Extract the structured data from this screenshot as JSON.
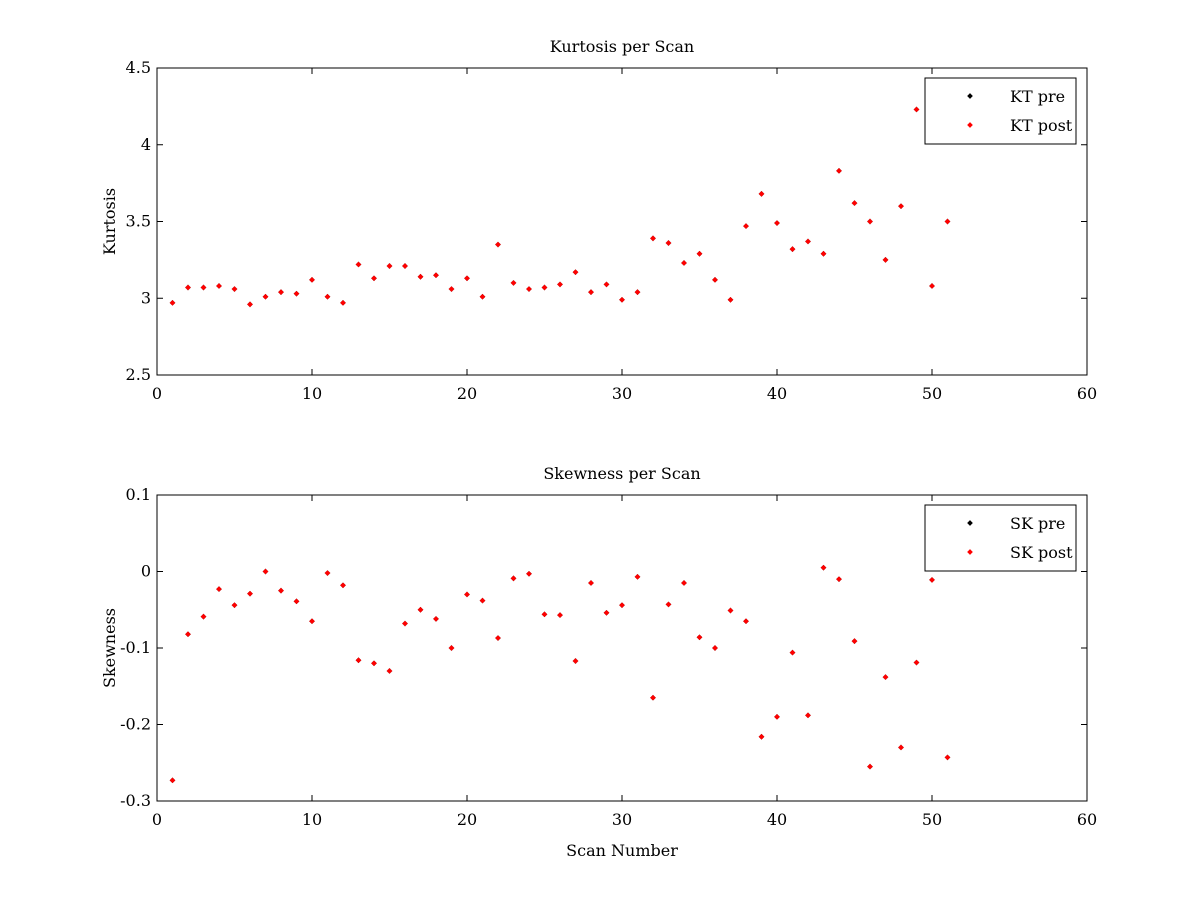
{
  "chart_data": [
    {
      "type": "scatter",
      "title": "Kurtosis per Scan",
      "xlabel": "",
      "ylabel": "Kurtosis",
      "xlim": [
        0,
        60
      ],
      "ylim": [
        2.5,
        4.5
      ],
      "xticks": [
        "0",
        "10",
        "20",
        "30",
        "40",
        "50",
        "60"
      ],
      "yticks": [
        "2.5",
        "3",
        "3.5",
        "4",
        "4.5"
      ],
      "xtick_values": [
        0,
        10,
        20,
        30,
        40,
        50,
        60
      ],
      "ytick_values": [
        2.5,
        3,
        3.5,
        4,
        4.5
      ],
      "grid": false,
      "legend_position": "top-right",
      "legend": [
        {
          "name": "KT pre",
          "color": "#000000"
        },
        {
          "name": "KT post",
          "color": "#ff0000"
        }
      ],
      "series": [
        {
          "name": "KT pre",
          "color": "#000000",
          "x": [
            1,
            2,
            3,
            4,
            5,
            6,
            7,
            8,
            9,
            10,
            11,
            12,
            13,
            14,
            15,
            16,
            17,
            18,
            19,
            20,
            21,
            22,
            23,
            24,
            25,
            26,
            27,
            28,
            29,
            30,
            31,
            32,
            33,
            34,
            35,
            36,
            37,
            38,
            39,
            40,
            41,
            42,
            43,
            44,
            45,
            46,
            47,
            48,
            49,
            50,
            51
          ],
          "y": [
            2.97,
            3.07,
            3.07,
            3.08,
            3.06,
            2.96,
            3.01,
            3.04,
            3.03,
            3.12,
            3.01,
            2.97,
            3.22,
            3.13,
            3.21,
            3.21,
            3.14,
            3.15,
            3.06,
            3.13,
            3.01,
            3.35,
            3.1,
            3.06,
            3.07,
            3.09,
            3.17,
            3.04,
            3.09,
            2.99,
            3.04,
            3.39,
            3.36,
            3.23,
            3.29,
            3.12,
            2.99,
            3.47,
            3.68,
            3.49,
            3.32,
            3.37,
            3.29,
            3.83,
            3.62,
            3.5,
            3.25,
            3.6,
            4.23,
            3.08,
            3.5
          ]
        },
        {
          "name": "KT post",
          "color": "#ff0000",
          "x": [
            1,
            2,
            3,
            4,
            5,
            6,
            7,
            8,
            9,
            10,
            11,
            12,
            13,
            14,
            15,
            16,
            17,
            18,
            19,
            20,
            21,
            22,
            23,
            24,
            25,
            26,
            27,
            28,
            29,
            30,
            31,
            32,
            33,
            34,
            35,
            36,
            37,
            38,
            39,
            40,
            41,
            42,
            43,
            44,
            45,
            46,
            47,
            48,
            49,
            50,
            51
          ],
          "y": [
            2.97,
            3.07,
            3.07,
            3.08,
            3.06,
            2.96,
            3.01,
            3.04,
            3.03,
            3.12,
            3.01,
            2.97,
            3.22,
            3.13,
            3.21,
            3.21,
            3.14,
            3.15,
            3.06,
            3.13,
            3.01,
            3.35,
            3.1,
            3.06,
            3.07,
            3.09,
            3.17,
            3.04,
            3.09,
            2.99,
            3.04,
            3.39,
            3.36,
            3.23,
            3.29,
            3.12,
            2.99,
            3.47,
            3.68,
            3.49,
            3.32,
            3.37,
            3.29,
            3.83,
            3.62,
            3.5,
            3.25,
            3.6,
            4.23,
            3.08,
            3.5
          ]
        }
      ]
    },
    {
      "type": "scatter",
      "title": "Skewness per Scan",
      "xlabel": "Scan Number",
      "ylabel": "Skewness",
      "xlim": [
        0,
        60
      ],
      "ylim": [
        -0.3,
        0.1
      ],
      "xticks": [
        "0",
        "10",
        "20",
        "30",
        "40",
        "50",
        "60"
      ],
      "yticks": [
        "-0.3",
        "-0.2",
        "-0.1",
        "0",
        "0.1"
      ],
      "xtick_values": [
        0,
        10,
        20,
        30,
        40,
        50,
        60
      ],
      "ytick_values": [
        -0.3,
        -0.2,
        -0.1,
        0,
        0.1
      ],
      "grid": false,
      "legend_position": "top-right",
      "legend": [
        {
          "name": "SK pre",
          "color": "#000000"
        },
        {
          "name": "SK post",
          "color": "#ff0000"
        }
      ],
      "series": [
        {
          "name": "SK pre",
          "color": "#000000",
          "x": [
            1,
            2,
            3,
            4,
            5,
            6,
            7,
            8,
            9,
            10,
            11,
            12,
            13,
            14,
            15,
            16,
            17,
            18,
            19,
            20,
            21,
            22,
            23,
            24,
            25,
            26,
            27,
            28,
            29,
            30,
            31,
            32,
            33,
            34,
            35,
            36,
            37,
            38,
            39,
            40,
            41,
            42,
            43,
            44,
            45,
            46,
            47,
            48,
            49,
            50,
            51
          ],
          "y": [
            -0.273,
            -0.082,
            -0.059,
            -0.023,
            -0.044,
            -0.029,
            0.0,
            -0.025,
            -0.039,
            -0.065,
            -0.002,
            -0.018,
            -0.116,
            -0.12,
            -0.13,
            -0.068,
            -0.05,
            -0.062,
            -0.1,
            -0.03,
            -0.038,
            -0.087,
            -0.009,
            -0.003,
            -0.056,
            -0.057,
            -0.117,
            -0.015,
            -0.054,
            -0.044,
            -0.007,
            -0.165,
            -0.043,
            -0.015,
            -0.086,
            -0.1,
            -0.051,
            -0.065,
            -0.216,
            -0.19,
            -0.106,
            -0.188,
            0.005,
            -0.01,
            -0.091,
            -0.255,
            -0.138,
            -0.23,
            -0.119,
            -0.011,
            -0.243
          ]
        },
        {
          "name": "SK post",
          "color": "#ff0000",
          "x": [
            1,
            2,
            3,
            4,
            5,
            6,
            7,
            8,
            9,
            10,
            11,
            12,
            13,
            14,
            15,
            16,
            17,
            18,
            19,
            20,
            21,
            22,
            23,
            24,
            25,
            26,
            27,
            28,
            29,
            30,
            31,
            32,
            33,
            34,
            35,
            36,
            37,
            38,
            39,
            40,
            41,
            42,
            43,
            44,
            45,
            46,
            47,
            48,
            49,
            50,
            51
          ],
          "y": [
            -0.273,
            -0.082,
            -0.059,
            -0.023,
            -0.044,
            -0.029,
            0.0,
            -0.025,
            -0.039,
            -0.065,
            -0.002,
            -0.018,
            -0.116,
            -0.12,
            -0.13,
            -0.068,
            -0.05,
            -0.062,
            -0.1,
            -0.03,
            -0.038,
            -0.087,
            -0.009,
            -0.003,
            -0.056,
            -0.057,
            -0.117,
            -0.015,
            -0.054,
            -0.044,
            -0.007,
            -0.165,
            -0.043,
            -0.015,
            -0.086,
            -0.1,
            -0.051,
            -0.065,
            -0.216,
            -0.19,
            -0.106,
            -0.188,
            0.005,
            -0.01,
            -0.091,
            -0.255,
            -0.138,
            -0.23,
            -0.119,
            -0.011,
            -0.243
          ]
        }
      ]
    }
  ]
}
